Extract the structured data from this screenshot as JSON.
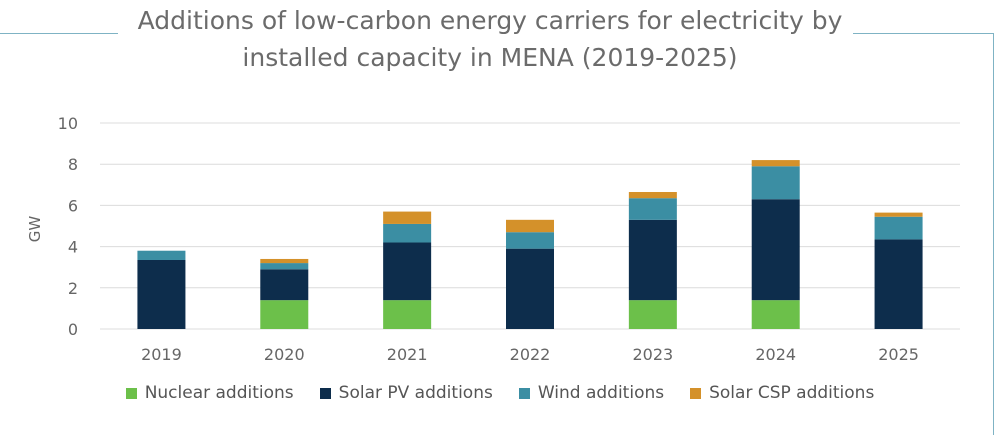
{
  "colors": {
    "frame": "#7fb3c4",
    "grid": "#dcdcdc",
    "Nuclear additions": "#6cc04a",
    "Solar PV additions": "#0d2d4c",
    "Wind additions": "#3b8ea3",
    "Solar CSP additions": "#d4912a"
  },
  "chart_data": {
    "type": "bar",
    "stacked": true,
    "title_line1": "Additions of low-carbon energy carriers for electricity by",
    "title_line2": "installed capacity in MENA (2019-2025)",
    "xlabel": "",
    "ylabel": "GW",
    "ylim": [
      0,
      10
    ],
    "yticks": [
      0,
      2,
      4,
      6,
      8,
      10
    ],
    "grid": true,
    "legend_position": "bottom",
    "categories": [
      "2019",
      "2020",
      "2021",
      "2022",
      "2023",
      "2024",
      "2025"
    ],
    "series": [
      {
        "name": "Nuclear additions",
        "values": [
          0,
          1.4,
          1.4,
          0,
          1.4,
          1.4,
          0
        ]
      },
      {
        "name": "Solar PV additions",
        "values": [
          3.35,
          1.5,
          2.8,
          3.9,
          3.9,
          4.9,
          4.35
        ]
      },
      {
        "name": "Wind additions",
        "values": [
          0.45,
          0.3,
          0.9,
          0.8,
          1.05,
          1.6,
          1.1
        ]
      },
      {
        "name": "Solar CSP additions",
        "values": [
          0,
          0.2,
          0.6,
          0.6,
          0.3,
          0.3,
          0.2
        ]
      }
    ]
  }
}
